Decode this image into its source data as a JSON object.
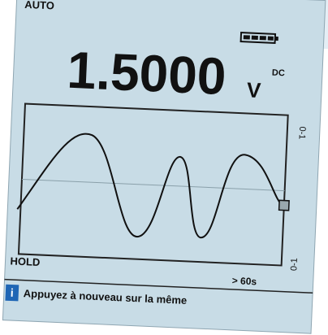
{
  "status": {
    "mode": "AUTO"
  },
  "reading": {
    "value": "1.5000",
    "unit": "V",
    "coupling": "DC"
  },
  "scale": {
    "top": "0-1",
    "bottom": "0-1"
  },
  "footer": {
    "hold": "HOLD",
    "duration": "> 60s"
  },
  "info": {
    "icon": "i",
    "message": "Appuyez à nouveau sur la même"
  }
}
